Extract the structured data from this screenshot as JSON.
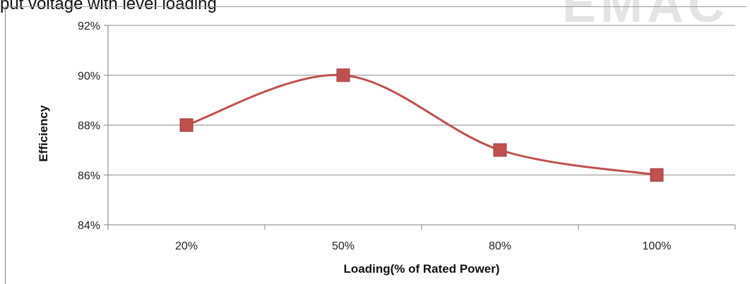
{
  "page": {
    "caption_fragment": "put voltage with level loading",
    "watermark_text": "EMAC"
  },
  "chart_data": {
    "type": "line",
    "categories": [
      "20%",
      "50%",
      "80%",
      "100%"
    ],
    "series": [
      {
        "values": [
          88,
          90,
          87,
          86
        ],
        "color": "#c0504d",
        "marker": "square"
      }
    ],
    "ylabel": "Efficiency",
    "xlabel": "Loading(% of Rated Power)",
    "ylim": [
      84,
      92
    ],
    "yticks": [
      "84%",
      "86%",
      "88%",
      "90%",
      "92%"
    ],
    "y_unit": "%",
    "grid": true,
    "smooth": true,
    "legend": "none"
  }
}
